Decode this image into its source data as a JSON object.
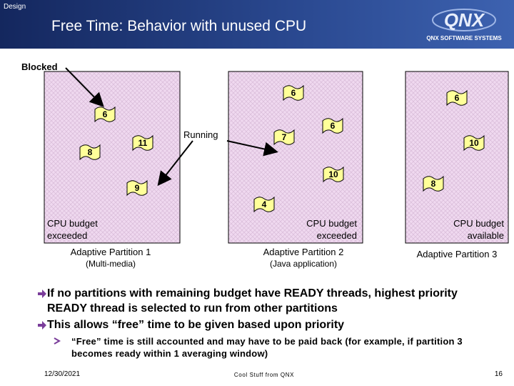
{
  "header": {
    "section": "Design",
    "title": "Free Time: Behavior with unused CPU",
    "logo": "QNX",
    "logo_tagline": "QNX SOFTWARE SYSTEMS"
  },
  "diagram": {
    "blocked_label": "Blocked",
    "running_label": "Running",
    "flags": [
      "6",
      "6",
      "6",
      "11",
      "8",
      "7",
      "6",
      "10",
      "10",
      "9",
      "8",
      "4"
    ],
    "partitions": [
      {
        "status": [
          "CPU budget",
          "exceeded"
        ],
        "name": "Adaptive Partition 1",
        "description": "(Multi-media)"
      },
      {
        "status": [
          "CPU budget",
          "exceeded"
        ],
        "name": "Adaptive Partition 2",
        "description": "(Java application)"
      },
      {
        "status": [
          "CPU budget",
          "available"
        ],
        "name": "Adaptive Partition 3"
      }
    ]
  },
  "bullets": [
    {
      "text": "If no partitions with remaining budget have READY threads, highest priority READY thread is selected to run from other partitions"
    },
    {
      "text": "This allows “free” time to be given based upon priority",
      "sub_bullets": [
        "“Free” time is still accounted and may have to be paid back (for example, if partition 3 becomes ready within 1 averaging window)"
      ]
    }
  ],
  "footer": {
    "date": "12/30/2021",
    "center": "Cool Stuff from QNX",
    "page": "16"
  }
}
